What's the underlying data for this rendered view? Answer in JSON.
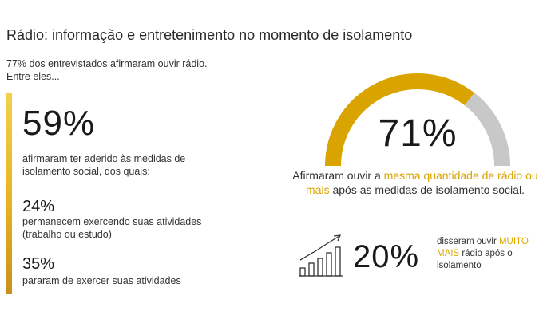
{
  "title": "Rádio: informação e entretenimento no momento de isolamento",
  "intro": {
    "line1": "77% dos entrevistados afirmaram ouvir rádio.",
    "line2": "Entre eles..."
  },
  "left": {
    "stat1": {
      "value": "59%",
      "desc": "afirmaram ter aderido às medidas de isolamento social, dos quais:"
    },
    "stat2": {
      "value": "24%",
      "desc": "permanecem exercendo suas atividades (trabalho ou estudo)"
    },
    "stat3": {
      "value": "35%",
      "desc": "pararam de exercer suas atividades"
    }
  },
  "right": {
    "gauge": {
      "value_label": "71%",
      "desc_before": "Afirmaram ouvir a ",
      "desc_highlight": "mesma quantidade de rádio ou mais",
      "desc_after": " após as medidas de isolamento social."
    },
    "growth": {
      "value_label": "20%",
      "desc_before": "disseram ouvir ",
      "desc_highlight": "MUITO MAIS",
      "desc_after": " rádio após o isolamento",
      "icon": "growth-bars-icon"
    }
  },
  "colors": {
    "accent": "#d9a400",
    "gauge_remainder": "#c8c8c8",
    "bar_top": "#f3d04a",
    "bar_bottom": "#c8901c"
  },
  "chart_data": {
    "type": "gauge",
    "value": 71,
    "max": 100,
    "series": [
      {
        "values": [
          71,
          29
        ]
      }
    ]
  }
}
